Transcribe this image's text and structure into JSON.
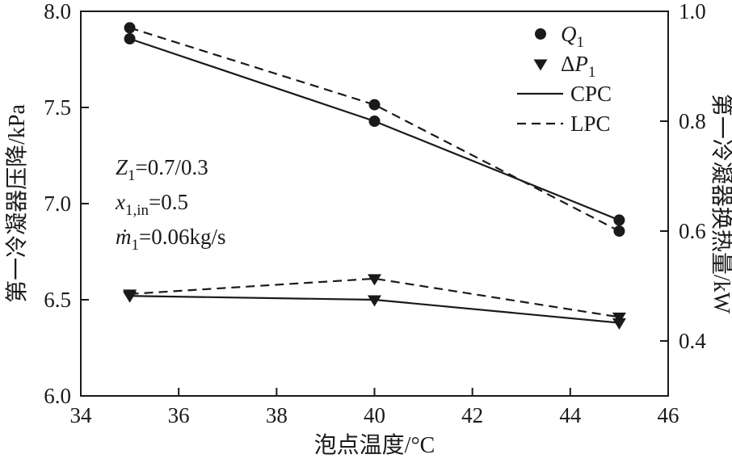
{
  "figure": {
    "background": "#ffffff",
    "ink": "#1a1a1a"
  },
  "legend": {
    "items": [
      {
        "marker": "circle",
        "parts": [
          {
            "t": "Q",
            "italic": true
          },
          {
            "t": "1",
            "sub": true
          }
        ]
      },
      {
        "marker": "triangle-down",
        "parts": [
          {
            "t": "Δ"
          },
          {
            "t": "P",
            "italic": true
          },
          {
            "t": "1",
            "sub": true
          }
        ]
      },
      {
        "line": "solid",
        "parts": [
          {
            "t": "CPC"
          }
        ]
      },
      {
        "line": "dashed",
        "parts": [
          {
            "t": "LPC"
          }
        ]
      }
    ]
  },
  "annotations": [
    {
      "parts": [
        {
          "t": "Z",
          "italic": true
        },
        {
          "t": "1",
          "sub": true
        },
        {
          "t": "=0.7/0.3",
          "reset": true
        }
      ]
    },
    {
      "parts": [
        {
          "t": "x",
          "italic": true
        },
        {
          "t": "1,in",
          "sub": true
        },
        {
          "t": "=0.5",
          "reset": true
        }
      ]
    },
    {
      "parts": [
        {
          "t": "ṁ",
          "italic": true
        },
        {
          "t": "1",
          "sub": true
        },
        {
          "t": "=0.06kg/s",
          "reset": true
        }
      ]
    }
  ],
  "chart_data": {
    "type": "line",
    "title": "",
    "xlabel": "泡点温度/°C",
    "ylabel_left": "第一冷凝器压降/kPa",
    "ylabel_right": "第一冷凝器换热量/kW",
    "x": [
      35,
      40,
      45
    ],
    "xlim": [
      34,
      46
    ],
    "xticks": [
      "34",
      "36",
      "38",
      "40",
      "42",
      "44",
      "46"
    ],
    "ylim_left": [
      6.0,
      8.0
    ],
    "yticks_left": [
      "6.0",
      "6.5",
      "7.0",
      "7.5",
      "8.0"
    ],
    "ylim_right": [
      0.3,
      1.0
    ],
    "yticks_right": [
      "0.4",
      "0.6",
      "0.8",
      "1.0"
    ],
    "grid": false,
    "legend_position": "top-right-inside",
    "series": [
      {
        "id": "q1-cpc",
        "name": "Q1 CPC",
        "axis": "right",
        "line": "solid",
        "marker": "circle",
        "values": [
          0.95,
          0.8,
          0.62
        ]
      },
      {
        "id": "q1-lpc",
        "name": "Q1 LPC",
        "axis": "right",
        "line": "dashed",
        "marker": "circle",
        "values": [
          0.97,
          0.83,
          0.6
        ]
      },
      {
        "id": "dp1-cpc",
        "name": "ΔP1 CPC",
        "axis": "left",
        "line": "solid",
        "marker": "triangle-down",
        "values": [
          6.52,
          6.5,
          6.38
        ]
      },
      {
        "id": "dp1-lpc",
        "name": "ΔP1 LPC",
        "axis": "left",
        "line": "dashed",
        "marker": "triangle-down",
        "values": [
          6.53,
          6.61,
          6.41
        ]
      }
    ]
  }
}
